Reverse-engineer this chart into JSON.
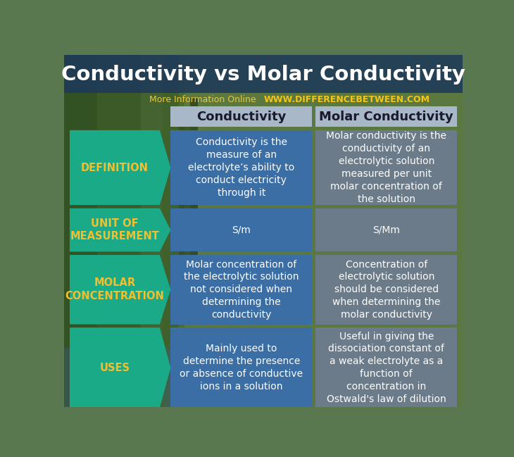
{
  "title": "Conductivity vs Molar Conductivity",
  "subtitle_normal": "More Information Online  ",
  "subtitle_bold": "WWW.DIFFERENCEBETWEEN.COM",
  "col1_header": "Conductivity",
  "col2_header": "Molar Conductivity",
  "rows": [
    {
      "label": "DEFINITION",
      "col1": "Conductivity is the\nmeasure of an\nelectrolyte’s ability to\nconduct electricity\nthrough it",
      "col2": "Molar conductivity is the\nconductivity of an\nelectrolytic solution\nmeasured per unit\nmolar concentration of\nthe solution"
    },
    {
      "label": "UNIT OF\nMEASUREMENT",
      "col1": "S/m",
      "col2": "S/Mm"
    },
    {
      "label": "MOLAR\nCONCENTRATION",
      "col1": "Molar concentration of\nthe electrolytic solution\nnot considered when\ndetermining the\nconductivity",
      "col2": "Concentration of\nelectrolytic solution\nshould be considered\nwhen determining the\nmolar conductivity"
    },
    {
      "label": "USES",
      "col1": "Mainly used to\ndetermine the presence\nor absence of conductive\nions in a solution",
      "col2": "Useful in giving the\ndissociation constant of\na weak electrolyte as a\nfunction of\nconcentration in\nOstwald's law of dilution"
    }
  ],
  "title_overlay_color": "#1a3a5c",
  "title_color": "#ffffff",
  "subtitle_normal_color": "#e8c840",
  "subtitle_bold_color": "#f5c518",
  "header_bg": "#a8b8c8",
  "header_text_color": "#1a1a2e",
  "label_bg": "#1aaa88",
  "label_text_color": "#f0c030",
  "col1_bg": "#3a6ea5",
  "col1_text_color": "#ffffff",
  "col2_bg": "#6b7b8a",
  "col2_text_color": "#ffffff",
  "bg_left_color": "#3a6840",
  "bg_right_color": "#4a8860",
  "gap_color": "#b8c8a0",
  "title_bar_color": "#1e3a5a"
}
